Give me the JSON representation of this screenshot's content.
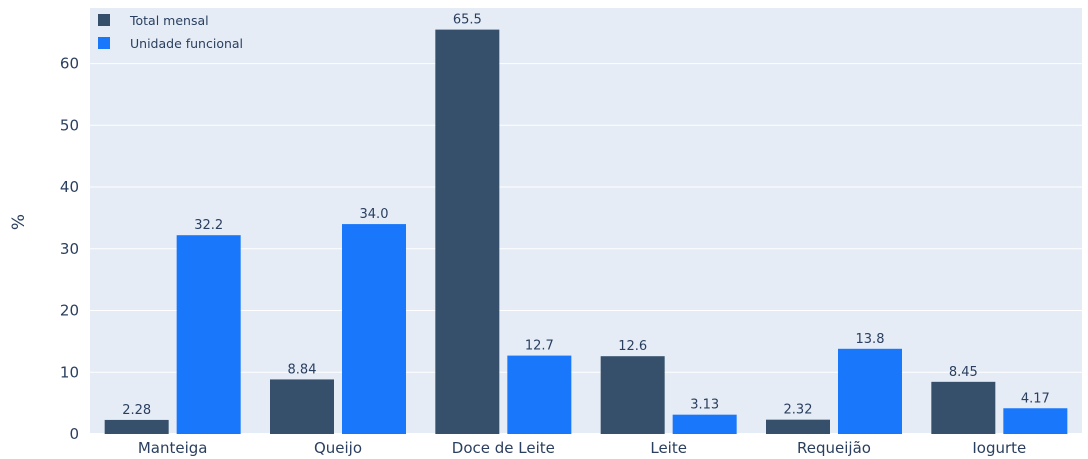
{
  "chart_data": {
    "type": "bar",
    "title": "",
    "xlabel": "",
    "ylabel": "%",
    "ylim": [
      0,
      69
    ],
    "yticks": [
      0,
      10,
      20,
      30,
      40,
      50,
      60
    ],
    "grid": true,
    "legend_position": "top-left",
    "categories": [
      "Manteiga",
      "Queijo",
      "Doce de Leite",
      "Leite",
      "Requeijão",
      "Iogurte"
    ],
    "series": [
      {
        "name": "Total mensal",
        "color": "#36506b",
        "values": [
          2.28,
          8.84,
          65.5,
          12.6,
          2.32,
          8.45
        ],
        "labels": [
          "2.28",
          "8.84",
          "65.5",
          "12.6",
          "2.32",
          "8.45"
        ]
      },
      {
        "name": "Unidade funcional",
        "color": "#1877fb",
        "values": [
          32.2,
          34.0,
          12.7,
          3.13,
          13.8,
          4.17
        ],
        "labels": [
          "32.2",
          "34.0",
          "12.7",
          "3.13",
          "13.8",
          "4.17"
        ]
      }
    ],
    "plot_background": "#e5ecf6"
  }
}
